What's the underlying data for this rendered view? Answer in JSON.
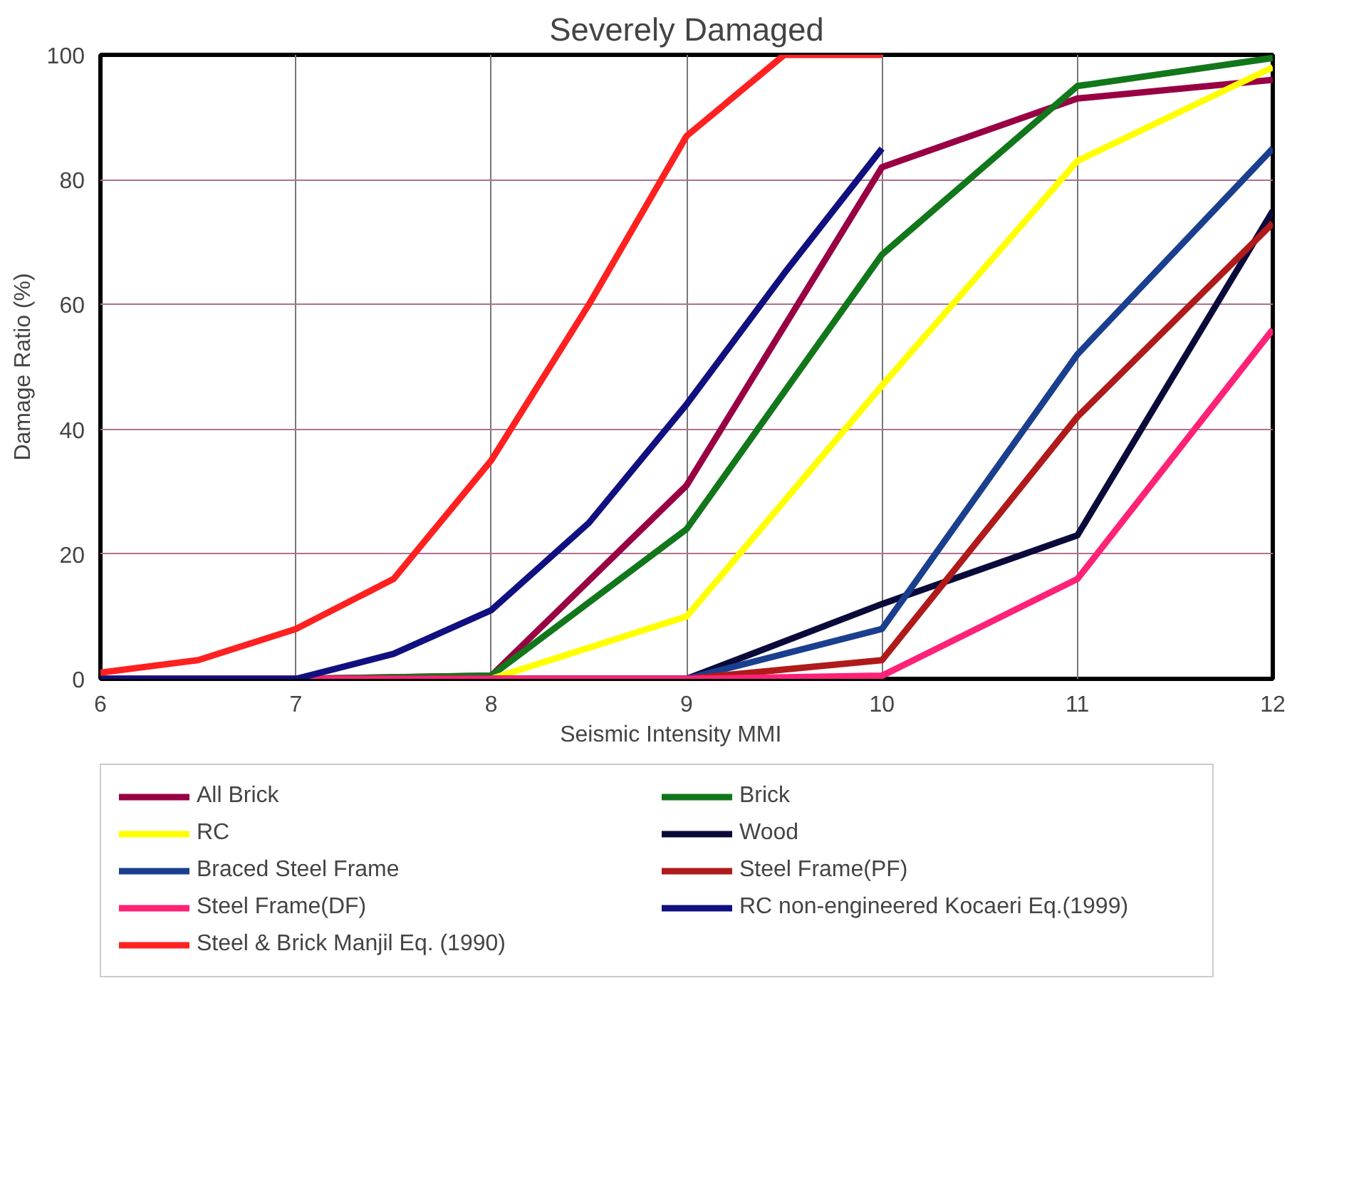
{
  "chart_data": {
    "type": "line",
    "title": "Severely Damaged",
    "xlabel": "Seismic Intensity      MMI",
    "ylabel": "Damage Ratio (%)",
    "xlim": [
      6,
      12
    ],
    "ylim": [
      0,
      100
    ],
    "xticks": [
      6,
      7,
      8,
      9,
      10,
      11,
      12
    ],
    "yticks": [
      0,
      20,
      40,
      60,
      80,
      100
    ],
    "grid": true,
    "legend": "bottom",
    "marker": "none",
    "line_style": "solid",
    "series": [
      {
        "name": "All Brick",
        "color": "#990044",
        "x": [
          6,
          7,
          8,
          9,
          10,
          11,
          12
        ],
        "values": [
          0,
          0,
          0.5,
          31,
          82,
          93,
          96
        ]
      },
      {
        "name": "Brick",
        "color": "#11771a",
        "x": [
          6,
          7,
          8,
          9,
          10,
          11,
          12
        ],
        "values": [
          0,
          0,
          0.5,
          24,
          68,
          95,
          99.5
        ]
      },
      {
        "name": "RC",
        "color": "#ffff00",
        "x": [
          6,
          7,
          8,
          9,
          10,
          11,
          12
        ],
        "values": [
          0,
          0,
          0,
          10,
          47,
          83,
          98
        ]
      },
      {
        "name": "Wood",
        "color": "#0a0a3a",
        "x": [
          6,
          7,
          8,
          9,
          10,
          11,
          12
        ],
        "values": [
          0,
          0,
          0,
          0,
          12,
          23,
          75
        ]
      },
      {
        "name": "Braced Steel Frame",
        "color": "#1a3f8f",
        "x": [
          6,
          7,
          8,
          9,
          10,
          11,
          12
        ],
        "values": [
          0,
          0,
          0,
          0,
          8,
          52,
          85
        ]
      },
      {
        "name": "Steel Frame(PF)",
        "color": "#b01a1a",
        "x": [
          6,
          7,
          8,
          9,
          10,
          11,
          12
        ],
        "values": [
          0,
          0,
          0,
          0,
          3,
          42,
          73
        ]
      },
      {
        "name": "Steel Frame(DF)",
        "color": "#ff2277",
        "x": [
          6,
          7,
          8,
          9,
          10,
          11,
          12
        ],
        "values": [
          0,
          0,
          0,
          0,
          0.5,
          16,
          56
        ]
      },
      {
        "name": "RC non-engineered Kocaeri Eq.(1999)",
        "color": "#101080",
        "x": [
          6,
          6.5,
          7,
          7.5,
          8,
          8.5,
          9,
          9.5,
          10
        ],
        "values": [
          0,
          0,
          0,
          4,
          11,
          25,
          44,
          65,
          85
        ]
      },
      {
        "name": "Steel & Brick Manjil Eq. (1990)",
        "color": "#ff2020",
        "x": [
          6,
          6.5,
          7,
          7.5,
          8,
          8.5,
          9,
          9.5,
          10
        ],
        "values": [
          1,
          3,
          8,
          16,
          35,
          60,
          87,
          100,
          100
        ]
      }
    ]
  }
}
